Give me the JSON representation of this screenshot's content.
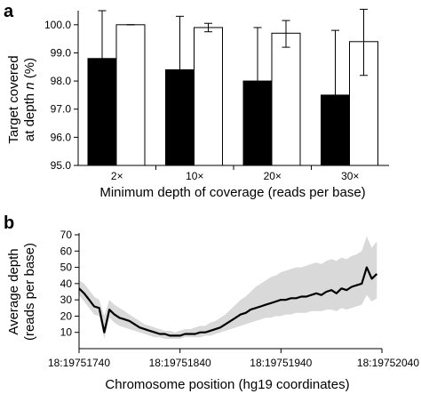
{
  "colors": {
    "bar_dark": "#000000",
    "bar_light": "#ffffff",
    "line": "#000000",
    "band": "#d9d9d9",
    "axis": "#000000"
  },
  "chart_data": [
    {
      "panel": "a",
      "type": "bar",
      "xlabel": "Minimum depth of coverage (reads per base)",
      "ylabel_line1": "Target covered",
      "ylabel_line2_prefix": "at depth ",
      "ylabel_line2_var": "n",
      "ylabel_line2_suffix": " (%)",
      "ylim": [
        95.0,
        100.5
      ],
      "yticks": [
        "95.0",
        "96.0",
        "97.0",
        "98.0",
        "99.0",
        "100.0"
      ],
      "categories": [
        "2×",
        "10×",
        "20×",
        "30×"
      ],
      "grid": false,
      "legend": "none",
      "series": [
        {
          "color": "#000000",
          "values": [
            98.8,
            98.4,
            98.0,
            97.5
          ],
          "error_upper": [
            100.5,
            100.3,
            99.9,
            99.8
          ]
        },
        {
          "color": "#ffffff",
          "values": [
            100.0,
            99.9,
            99.7,
            99.4
          ],
          "error_upper": [
            100.0,
            100.05,
            100.15,
            100.55
          ],
          "error_lower": [
            100.0,
            99.75,
            99.2,
            98.2
          ]
        }
      ]
    },
    {
      "panel": "b",
      "type": "line",
      "xlabel": "Chromosome position (hg19 coordinates)",
      "ylabel_line1": "Average depth",
      "ylabel_line2": "(reads per base)",
      "ylim": [
        0,
        70
      ],
      "yticks": [
        "10",
        "20",
        "30",
        "40",
        "50",
        "60",
        "70"
      ],
      "xlim": [
        19751740,
        19752040
      ],
      "xticks": [
        {
          "value": 19751740,
          "label": "18:19751740"
        },
        {
          "value": 19751840,
          "label": "18:19751840"
        },
        {
          "value": 19751940,
          "label": "18:19751940"
        },
        {
          "value": 19752040,
          "label": "18:19752040"
        }
      ],
      "band": "variability range (grey)",
      "grid": false,
      "legend": "none",
      "x": [
        19751740,
        19751745,
        19751750,
        19751755,
        19751760,
        19751765,
        19751770,
        19751775,
        19751780,
        19751785,
        19751790,
        19751795,
        19751800,
        19751805,
        19751810,
        19751815,
        19751820,
        19751825,
        19751830,
        19751835,
        19751840,
        19751845,
        19751850,
        19751855,
        19751860,
        19751865,
        19751870,
        19751875,
        19751880,
        19751885,
        19751890,
        19751895,
        19751900,
        19751905,
        19751910,
        19751915,
        19751920,
        19751925,
        19751930,
        19751935,
        19751940,
        19751945,
        19751950,
        19751955,
        19751960,
        19751965,
        19751970,
        19751975,
        19751980,
        19751985,
        19751990,
        19751995,
        19752000,
        19752005,
        19752010,
        19752015,
        19752020,
        19752025,
        19752030,
        19752035
      ],
      "y": [
        37,
        34,
        30,
        26,
        25,
        10,
        24,
        21,
        19,
        18,
        17,
        15,
        13,
        12,
        11,
        10,
        9,
        9,
        8,
        8,
        8,
        9,
        9,
        9,
        10,
        10,
        11,
        12,
        13,
        15,
        17,
        19,
        21,
        22,
        24,
        25,
        26,
        27,
        28,
        29,
        30,
        30,
        31,
        31,
        32,
        32,
        33,
        34,
        33,
        35,
        36,
        34,
        37,
        36,
        38,
        39,
        40,
        50,
        43,
        46
      ],
      "band_upper": [
        42,
        40,
        36,
        32,
        30,
        20,
        30,
        27,
        25,
        23,
        21,
        19,
        17,
        15,
        14,
        13,
        12,
        11,
        11,
        10,
        11,
        12,
        12,
        13,
        14,
        14,
        16,
        17,
        19,
        21,
        24,
        27,
        30,
        32,
        35,
        38,
        40,
        42,
        44,
        45,
        47,
        48,
        49,
        50,
        50,
        51,
        52,
        53,
        52,
        54,
        55,
        54,
        56,
        55,
        57,
        58,
        60,
        69,
        62,
        66
      ],
      "band_lower": [
        33,
        29,
        25,
        21,
        20,
        6,
        19,
        16,
        14,
        13,
        12,
        11,
        10,
        9,
        8,
        7,
        7,
        6,
        6,
        6,
        6,
        7,
        7,
        7,
        7,
        8,
        8,
        9,
        10,
        11,
        12,
        13,
        14,
        15,
        16,
        17,
        18,
        19,
        19,
        20,
        20,
        21,
        21,
        22,
        22,
        22,
        23,
        23,
        23,
        24,
        24,
        23,
        25,
        24,
        25,
        26,
        27,
        33,
        29,
        31
      ]
    }
  ]
}
